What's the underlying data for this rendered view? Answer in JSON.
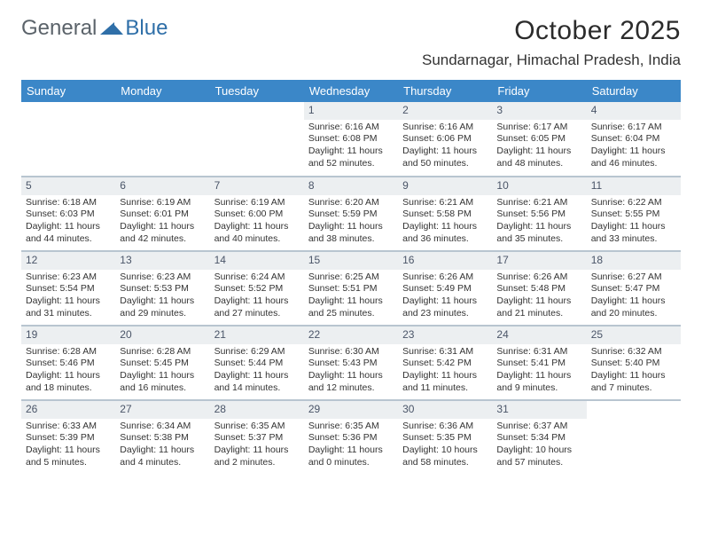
{
  "logo": {
    "text1": "General",
    "text2": "Blue"
  },
  "title": "October 2025",
  "location": "Sundarnagar, Himachal Pradesh, India",
  "colors": {
    "header_bg": "#3b87c8",
    "header_text": "#ffffff",
    "daynum_bg": "#eceff1",
    "row_divider": "#b8c5d0",
    "logo_accent": "#2f6fa8"
  },
  "weekdays": [
    "Sunday",
    "Monday",
    "Tuesday",
    "Wednesday",
    "Thursday",
    "Friday",
    "Saturday"
  ],
  "weeks": [
    [
      null,
      null,
      null,
      {
        "n": "1",
        "sr": "6:16 AM",
        "ss": "6:08 PM",
        "dl": "11 hours and 52 minutes."
      },
      {
        "n": "2",
        "sr": "6:16 AM",
        "ss": "6:06 PM",
        "dl": "11 hours and 50 minutes."
      },
      {
        "n": "3",
        "sr": "6:17 AM",
        "ss": "6:05 PM",
        "dl": "11 hours and 48 minutes."
      },
      {
        "n": "4",
        "sr": "6:17 AM",
        "ss": "6:04 PM",
        "dl": "11 hours and 46 minutes."
      }
    ],
    [
      {
        "n": "5",
        "sr": "6:18 AM",
        "ss": "6:03 PM",
        "dl": "11 hours and 44 minutes."
      },
      {
        "n": "6",
        "sr": "6:19 AM",
        "ss": "6:01 PM",
        "dl": "11 hours and 42 minutes."
      },
      {
        "n": "7",
        "sr": "6:19 AM",
        "ss": "6:00 PM",
        "dl": "11 hours and 40 minutes."
      },
      {
        "n": "8",
        "sr": "6:20 AM",
        "ss": "5:59 PM",
        "dl": "11 hours and 38 minutes."
      },
      {
        "n": "9",
        "sr": "6:21 AM",
        "ss": "5:58 PM",
        "dl": "11 hours and 36 minutes."
      },
      {
        "n": "10",
        "sr": "6:21 AM",
        "ss": "5:56 PM",
        "dl": "11 hours and 35 minutes."
      },
      {
        "n": "11",
        "sr": "6:22 AM",
        "ss": "5:55 PM",
        "dl": "11 hours and 33 minutes."
      }
    ],
    [
      {
        "n": "12",
        "sr": "6:23 AM",
        "ss": "5:54 PM",
        "dl": "11 hours and 31 minutes."
      },
      {
        "n": "13",
        "sr": "6:23 AM",
        "ss": "5:53 PM",
        "dl": "11 hours and 29 minutes."
      },
      {
        "n": "14",
        "sr": "6:24 AM",
        "ss": "5:52 PM",
        "dl": "11 hours and 27 minutes."
      },
      {
        "n": "15",
        "sr": "6:25 AM",
        "ss": "5:51 PM",
        "dl": "11 hours and 25 minutes."
      },
      {
        "n": "16",
        "sr": "6:26 AM",
        "ss": "5:49 PM",
        "dl": "11 hours and 23 minutes."
      },
      {
        "n": "17",
        "sr": "6:26 AM",
        "ss": "5:48 PM",
        "dl": "11 hours and 21 minutes."
      },
      {
        "n": "18",
        "sr": "6:27 AM",
        "ss": "5:47 PM",
        "dl": "11 hours and 20 minutes."
      }
    ],
    [
      {
        "n": "19",
        "sr": "6:28 AM",
        "ss": "5:46 PM",
        "dl": "11 hours and 18 minutes."
      },
      {
        "n": "20",
        "sr": "6:28 AM",
        "ss": "5:45 PM",
        "dl": "11 hours and 16 minutes."
      },
      {
        "n": "21",
        "sr": "6:29 AM",
        "ss": "5:44 PM",
        "dl": "11 hours and 14 minutes."
      },
      {
        "n": "22",
        "sr": "6:30 AM",
        "ss": "5:43 PM",
        "dl": "11 hours and 12 minutes."
      },
      {
        "n": "23",
        "sr": "6:31 AM",
        "ss": "5:42 PM",
        "dl": "11 hours and 11 minutes."
      },
      {
        "n": "24",
        "sr": "6:31 AM",
        "ss": "5:41 PM",
        "dl": "11 hours and 9 minutes."
      },
      {
        "n": "25",
        "sr": "6:32 AM",
        "ss": "5:40 PM",
        "dl": "11 hours and 7 minutes."
      }
    ],
    [
      {
        "n": "26",
        "sr": "6:33 AM",
        "ss": "5:39 PM",
        "dl": "11 hours and 5 minutes."
      },
      {
        "n": "27",
        "sr": "6:34 AM",
        "ss": "5:38 PM",
        "dl": "11 hours and 4 minutes."
      },
      {
        "n": "28",
        "sr": "6:35 AM",
        "ss": "5:37 PM",
        "dl": "11 hours and 2 minutes."
      },
      {
        "n": "29",
        "sr": "6:35 AM",
        "ss": "5:36 PM",
        "dl": "11 hours and 0 minutes."
      },
      {
        "n": "30",
        "sr": "6:36 AM",
        "ss": "5:35 PM",
        "dl": "10 hours and 58 minutes."
      },
      {
        "n": "31",
        "sr": "6:37 AM",
        "ss": "5:34 PM",
        "dl": "10 hours and 57 minutes."
      },
      null
    ]
  ],
  "labels": {
    "sunrise": "Sunrise:",
    "sunset": "Sunset:",
    "daylight": "Daylight:"
  }
}
